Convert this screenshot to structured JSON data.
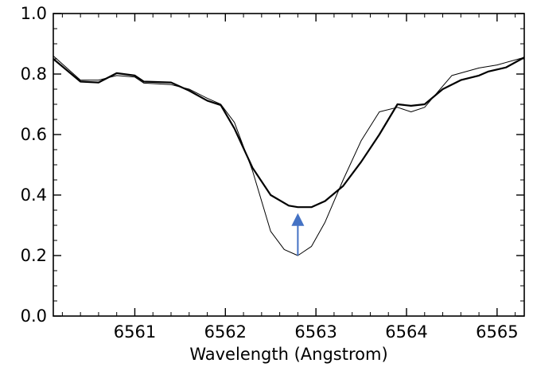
{
  "chart_data": {
    "type": "line",
    "title": "",
    "xlabel": "Wavelength (Angstrom)",
    "ylabel": "",
    "xlim": [
      6560.1,
      6565.3
    ],
    "ylim": [
      0.0,
      1.0
    ],
    "x_ticks": [
      6561,
      6562,
      6563,
      6564,
      6565
    ],
    "x_tick_labels": [
      "6561",
      "6562",
      "6563",
      "6564",
      "6565"
    ],
    "y_ticks": [
      0.0,
      0.2,
      0.4,
      0.6,
      0.8,
      1.0
    ],
    "y_tick_labels": [
      "0.0",
      "0.2",
      "0.4",
      "0.6",
      "0.8",
      "1.0"
    ],
    "grid": false,
    "legend": "none",
    "series": [
      {
        "style": "thick",
        "color": "#000000",
        "points": [
          [
            6560.1,
            0.85
          ],
          [
            6560.4,
            0.775
          ],
          [
            6560.6,
            0.772
          ],
          [
            6560.8,
            0.803
          ],
          [
            6561.0,
            0.795
          ],
          [
            6561.1,
            0.775
          ],
          [
            6561.4,
            0.772
          ],
          [
            6561.6,
            0.745
          ],
          [
            6561.8,
            0.712
          ],
          [
            6561.95,
            0.697
          ],
          [
            6562.1,
            0.62
          ],
          [
            6562.3,
            0.49
          ],
          [
            6562.5,
            0.4
          ],
          [
            6562.7,
            0.365
          ],
          [
            6562.8,
            0.36
          ],
          [
            6562.95,
            0.36
          ],
          [
            6563.1,
            0.38
          ],
          [
            6563.3,
            0.43
          ],
          [
            6563.5,
            0.51
          ],
          [
            6563.7,
            0.6
          ],
          [
            6563.9,
            0.7
          ],
          [
            6564.05,
            0.695
          ],
          [
            6564.2,
            0.7
          ],
          [
            6564.4,
            0.75
          ],
          [
            6564.6,
            0.78
          ],
          [
            6564.8,
            0.795
          ],
          [
            6564.9,
            0.808
          ],
          [
            6565.1,
            0.822
          ],
          [
            6565.3,
            0.855
          ]
        ]
      },
      {
        "style": "thin",
        "color": "#000000",
        "points": [
          [
            6560.1,
            0.86
          ],
          [
            6560.4,
            0.78
          ],
          [
            6560.6,
            0.78
          ],
          [
            6560.8,
            0.795
          ],
          [
            6561.0,
            0.79
          ],
          [
            6561.1,
            0.77
          ],
          [
            6561.4,
            0.765
          ],
          [
            6561.6,
            0.75
          ],
          [
            6561.8,
            0.72
          ],
          [
            6561.95,
            0.7
          ],
          [
            6562.1,
            0.64
          ],
          [
            6562.3,
            0.48
          ],
          [
            6562.5,
            0.28
          ],
          [
            6562.65,
            0.22
          ],
          [
            6562.8,
            0.2
          ],
          [
            6562.95,
            0.23
          ],
          [
            6563.1,
            0.31
          ],
          [
            6563.3,
            0.45
          ],
          [
            6563.5,
            0.58
          ],
          [
            6563.7,
            0.675
          ],
          [
            6563.9,
            0.69
          ],
          [
            6564.05,
            0.675
          ],
          [
            6564.2,
            0.69
          ],
          [
            6564.4,
            0.76
          ],
          [
            6564.5,
            0.795
          ],
          [
            6564.8,
            0.82
          ],
          [
            6565.0,
            0.83
          ],
          [
            6565.3,
            0.855
          ]
        ]
      }
    ],
    "annotations": [
      {
        "type": "arrow",
        "x": 6562.8,
        "y_from": 0.2,
        "y_to": 0.34,
        "color": "#4472C4"
      }
    ]
  }
}
